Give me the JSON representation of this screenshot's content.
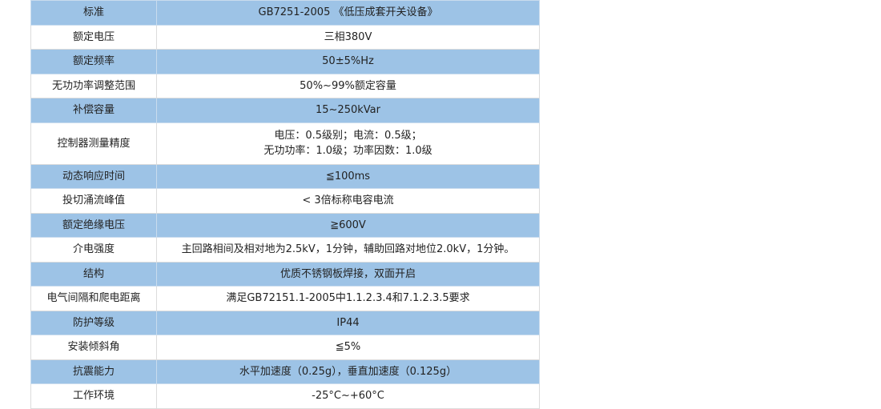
{
  "colors": {
    "row_highlight": "#9dc3e6",
    "border": "#dcdcdc"
  },
  "rows": [
    {
      "label": "标准",
      "value": "GB7251-2005 《低压成套开关设备》",
      "highlight": true
    },
    {
      "label": "额定电压",
      "value": "三相380V",
      "highlight": false
    },
    {
      "label": "额定频率",
      "value": "50±5%Hz",
      "highlight": true
    },
    {
      "label": "无功功率调整范围",
      "value": "50%~99%额定容量",
      "highlight": false
    },
    {
      "label": "补偿容量",
      "value": "15~250kVar",
      "highlight": true
    },
    {
      "label": "控制器测量精度",
      "value": "电压：0.5级别；电流：0.5级；",
      "value2": "无功功率：1.0级；功率因数：1.0级",
      "highlight": false
    },
    {
      "label": "动态响应时间",
      "value": "≦100ms",
      "highlight": true
    },
    {
      "label": "投切涌流峰值",
      "value": "< 3倍标称电容电流",
      "highlight": false
    },
    {
      "label": "额定绝缘电压",
      "value": "≧600V",
      "highlight": true
    },
    {
      "label": "介电强度",
      "value": "主回路相间及相对地为2.5kV，1分钟，辅助回路对地位2.0kV，1分钟。",
      "highlight": false
    },
    {
      "label": "结构",
      "value": "优质不锈钢板焊接，双面开启",
      "highlight": true
    },
    {
      "label": "电气间隔和爬电距离",
      "value": "满足GB72151.1-2005中1.1.2.3.4和7.1.2.3.5要求",
      "highlight": false
    },
    {
      "label": "防护等级",
      "value": "IP44",
      "highlight": true
    },
    {
      "label": "安装倾斜角",
      "value": "≦5%",
      "highlight": false
    },
    {
      "label": "抗震能力",
      "value": "水平加速度（0.25g），垂直加速度（0.125g）",
      "highlight": true
    },
    {
      "label": "工作环境",
      "value": "-25°C~+60°C",
      "highlight": false
    }
  ]
}
